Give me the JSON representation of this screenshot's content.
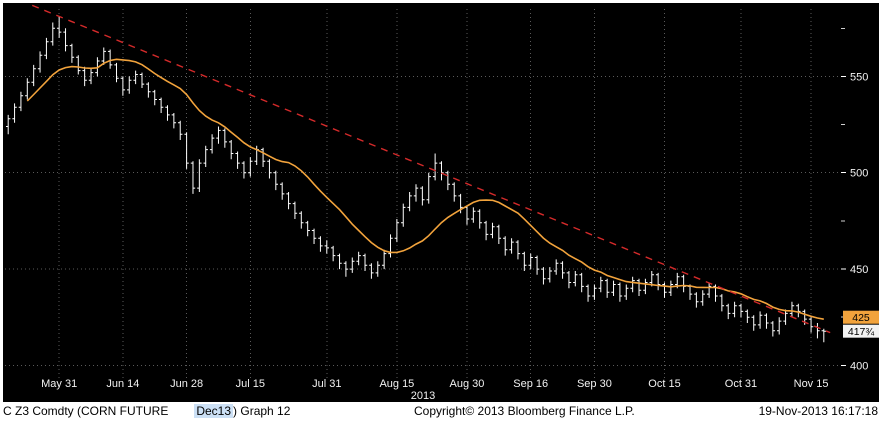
{
  "footer": {
    "left_1": "C Z3 Comdty (CORN FUTURE",
    "contract": "Dec13",
    "left_2": ") Graph 12",
    "copyright": "Copyright© 2013 Bloomberg Finance L.P.",
    "timestamp": "19-Nov-2013 16:17:18"
  },
  "chart_data": {
    "type": "ohlc",
    "title": "C Z3 Comdty (CORN FUTURE Dec13) Graph 12",
    "xlabel": "2013",
    "ylabel": "",
    "ylim": [
      395,
      585
    ],
    "grid": "dotted",
    "legend_position": "none",
    "background_color": "#000000",
    "bar_color": "#ffffff",
    "grid_color": "#5a5a5a",
    "axis_text_color": "#f2f2f2",
    "y_major_ticks": [
      400,
      450,
      500,
      550
    ],
    "y_minor_ticks": [
      425,
      475,
      525,
      575
    ],
    "year_label": "2013",
    "x_ticks": [
      {
        "label": "May 31",
        "index": 8
      },
      {
        "label": "Jun 14",
        "index": 18
      },
      {
        "label": "Jun 28",
        "index": 28
      },
      {
        "label": "Jul 15",
        "index": 38
      },
      {
        "label": "Jul 31",
        "index": 50
      },
      {
        "label": "Aug 15",
        "index": 61
      },
      {
        "label": "Aug 30",
        "index": 72
      },
      {
        "label": "Sep 16",
        "index": 82
      },
      {
        "label": "Sep 30",
        "index": 92
      },
      {
        "label": "Oct 15",
        "index": 103
      },
      {
        "label": "Oct 31",
        "index": 115
      },
      {
        "label": "Nov 15",
        "index": 126
      }
    ],
    "smavg_period": 15,
    "smavg_color": "#f2a33c",
    "trendline": {
      "color": "#d42a2a",
      "dash": "7 6",
      "start": {
        "index": 0,
        "value": 592
      },
      "end": {
        "index": 129,
        "value": 417
      }
    },
    "last_price": 417.75,
    "axis_badges": [
      {
        "value": 425,
        "label": "425",
        "bg": "#f2a33c",
        "fg": "#000000"
      },
      {
        "value": 417.75,
        "label": "417¾",
        "bg": "#f2f2f2",
        "fg": "#000000"
      }
    ],
    "bars": [
      [
        524,
        530,
        520,
        528
      ],
      [
        528,
        536,
        526,
        534
      ],
      [
        534,
        542,
        532,
        540
      ],
      [
        540,
        549,
        538,
        547
      ],
      [
        547,
        556,
        545,
        554
      ],
      [
        554,
        563,
        552,
        561
      ],
      [
        561,
        570,
        559,
        568
      ],
      [
        568,
        578,
        566,
        575
      ],
      [
        575,
        581,
        570,
        573
      ],
      [
        573,
        575,
        563,
        566
      ],
      [
        566,
        567,
        557,
        560
      ],
      [
        560,
        561,
        551,
        553
      ],
      [
        553,
        555,
        545,
        548
      ],
      [
        548,
        554,
        546,
        552
      ],
      [
        552,
        560,
        550,
        558
      ],
      [
        558,
        565,
        556,
        563
      ],
      [
        563,
        564,
        554,
        556
      ],
      [
        556,
        557,
        547,
        549
      ],
      [
        549,
        550,
        540,
        543
      ],
      [
        543,
        550,
        541,
        548
      ],
      [
        548,
        553,
        546,
        551
      ],
      [
        551,
        552,
        544,
        546
      ],
      [
        546,
        547,
        539,
        542
      ],
      [
        542,
        543,
        535,
        538
      ],
      [
        538,
        539,
        531,
        534
      ],
      [
        534,
        535,
        527,
        530
      ],
      [
        530,
        531,
        523,
        526
      ],
      [
        526,
        527,
        517,
        520
      ],
      [
        520,
        521,
        502,
        505
      ],
      [
        505,
        506,
        489,
        492
      ],
      [
        492,
        507,
        490,
        505
      ],
      [
        505,
        514,
        503,
        512
      ],
      [
        512,
        520,
        510,
        518
      ],
      [
        518,
        524,
        515,
        522
      ],
      [
        522,
        523,
        513,
        516
      ],
      [
        516,
        517,
        507,
        510
      ],
      [
        510,
        511,
        502,
        505
      ],
      [
        505,
        506,
        497,
        500
      ],
      [
        500,
        508,
        498,
        506
      ],
      [
        506,
        514,
        504,
        512
      ],
      [
        512,
        513,
        503,
        506
      ],
      [
        506,
        507,
        497,
        500
      ],
      [
        500,
        501,
        491,
        494
      ],
      [
        494,
        495,
        486,
        489
      ],
      [
        489,
        490,
        481,
        484
      ],
      [
        484,
        485,
        476,
        479
      ],
      [
        479,
        480,
        471,
        474
      ],
      [
        474,
        475,
        467,
        470
      ],
      [
        470,
        471,
        463,
        466
      ],
      [
        466,
        467,
        459,
        462
      ],
      [
        462,
        465,
        458,
        461
      ],
      [
        461,
        462,
        454,
        457
      ],
      [
        457,
        458,
        450,
        453
      ],
      [
        453,
        454,
        446,
        450
      ],
      [
        450,
        456,
        448,
        454
      ],
      [
        454,
        459,
        452,
        457
      ],
      [
        457,
        458,
        449,
        452
      ],
      [
        452,
        453,
        445,
        448
      ],
      [
        448,
        454,
        446,
        452
      ],
      [
        452,
        460,
        450,
        458
      ],
      [
        458,
        468,
        456,
        466
      ],
      [
        466,
        476,
        464,
        474
      ],
      [
        474,
        484,
        472,
        482
      ],
      [
        482,
        490,
        480,
        488
      ],
      [
        488,
        494,
        485,
        492
      ],
      [
        492,
        493,
        483,
        486
      ],
      [
        486,
        500,
        484,
        498
      ],
      [
        498,
        510,
        496,
        505
      ],
      [
        505,
        506,
        496,
        500
      ],
      [
        500,
        501,
        491,
        494
      ],
      [
        494,
        495,
        485,
        488
      ],
      [
        488,
        489,
        479,
        482
      ],
      [
        482,
        483,
        473,
        476
      ],
      [
        476,
        482,
        474,
        480
      ],
      [
        480,
        481,
        471,
        474
      ],
      [
        474,
        475,
        465,
        468
      ],
      [
        468,
        474,
        466,
        472
      ],
      [
        472,
        473,
        463,
        466
      ],
      [
        466,
        467,
        457,
        460
      ],
      [
        460,
        466,
        458,
        464
      ],
      [
        464,
        465,
        455,
        458
      ],
      [
        458,
        459,
        449,
        452
      ],
      [
        452,
        458,
        450,
        456
      ],
      [
        456,
        457,
        447,
        450
      ],
      [
        450,
        451,
        442,
        445
      ],
      [
        445,
        451,
        443,
        449
      ],
      [
        449,
        455,
        447,
        453
      ],
      [
        453,
        454,
        445,
        448
      ],
      [
        448,
        449,
        440,
        443
      ],
      [
        443,
        449,
        441,
        447
      ],
      [
        447,
        448,
        438,
        441
      ],
      [
        441,
        442,
        433,
        436
      ],
      [
        436,
        442,
        434,
        440
      ],
      [
        440,
        446,
        438,
        444
      ],
      [
        444,
        445,
        435,
        438
      ],
      [
        438,
        444,
        436,
        442
      ],
      [
        442,
        443,
        433,
        436
      ],
      [
        436,
        442,
        434,
        440
      ],
      [
        440,
        446,
        438,
        444
      ],
      [
        444,
        445,
        436,
        439
      ],
      [
        439,
        445,
        437,
        443
      ],
      [
        443,
        449,
        441,
        447
      ],
      [
        447,
        448,
        439,
        442
      ],
      [
        442,
        443,
        435,
        438
      ],
      [
        438,
        444,
        436,
        442
      ],
      [
        442,
        448,
        440,
        446
      ],
      [
        446,
        447,
        438,
        441
      ],
      [
        441,
        442,
        434,
        437
      ],
      [
        437,
        438,
        430,
        433
      ],
      [
        433,
        439,
        431,
        437
      ],
      [
        437,
        443,
        435,
        441
      ],
      [
        441,
        442,
        433,
        436
      ],
      [
        436,
        437,
        428,
        431
      ],
      [
        431,
        432,
        424,
        427
      ],
      [
        427,
        433,
        425,
        431
      ],
      [
        431,
        432,
        425,
        428
      ],
      [
        428,
        429,
        422,
        425
      ],
      [
        425,
        426,
        418,
        421
      ],
      [
        421,
        428,
        419,
        426
      ],
      [
        426,
        427,
        419,
        422
      ],
      [
        422,
        423,
        415,
        418
      ],
      [
        418,
        425,
        416,
        423
      ],
      [
        423,
        429,
        421,
        427
      ],
      [
        427,
        433,
        425,
        431
      ],
      [
        431,
        432,
        425,
        428
      ],
      [
        428,
        429,
        421,
        424
      ],
      [
        424,
        425,
        417,
        420
      ],
      [
        420,
        422,
        414,
        418
      ],
      [
        418,
        419,
        412,
        417.75
      ]
    ]
  }
}
